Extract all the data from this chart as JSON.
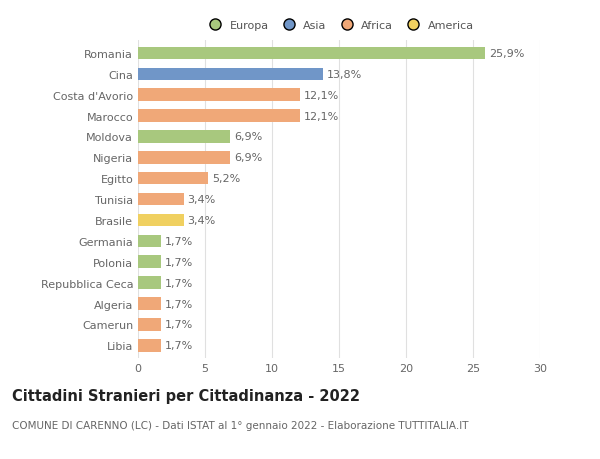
{
  "countries": [
    "Romania",
    "Cina",
    "Costa d'Avorio",
    "Marocco",
    "Moldova",
    "Nigeria",
    "Egitto",
    "Tunisia",
    "Brasile",
    "Germania",
    "Polonia",
    "Repubblica Ceca",
    "Algeria",
    "Camerun",
    "Libia"
  ],
  "values": [
    25.9,
    13.8,
    12.1,
    12.1,
    6.9,
    6.9,
    5.2,
    3.4,
    3.4,
    1.7,
    1.7,
    1.7,
    1.7,
    1.7,
    1.7
  ],
  "labels": [
    "25,9%",
    "13,8%",
    "12,1%",
    "12,1%",
    "6,9%",
    "6,9%",
    "5,2%",
    "3,4%",
    "3,4%",
    "1,7%",
    "1,7%",
    "1,7%",
    "1,7%",
    "1,7%",
    "1,7%"
  ],
  "categories": [
    "Europa",
    "Asia",
    "Africa",
    "America"
  ],
  "bar_colors": [
    "#a8c87e",
    "#7096c8",
    "#f0a878",
    "#f0a878",
    "#a8c87e",
    "#f0a878",
    "#f0a878",
    "#f0a878",
    "#f0d060",
    "#a8c87e",
    "#a8c87e",
    "#a8c87e",
    "#f0a878",
    "#f0a878",
    "#f0a878"
  ],
  "legend_colors": [
    "#a8c87e",
    "#7096c8",
    "#f0a878",
    "#f0d060"
  ],
  "title": "Cittadini Stranieri per Cittadinanza - 2022",
  "subtitle": "COMUNE DI CARENNO (LC) - Dati ISTAT al 1° gennaio 2022 - Elaborazione TUTTITALIA.IT",
  "xlim": [
    0,
    30
  ],
  "xticks": [
    0,
    5,
    10,
    15,
    20,
    25,
    30
  ],
  "background_color": "#ffffff",
  "grid_color": "#e0e0e0",
  "bar_label_fontsize": 8,
  "ytick_fontsize": 8,
  "xtick_fontsize": 8,
  "legend_fontsize": 8,
  "title_fontsize": 10.5,
  "subtitle_fontsize": 7.5,
  "bar_height": 0.6
}
